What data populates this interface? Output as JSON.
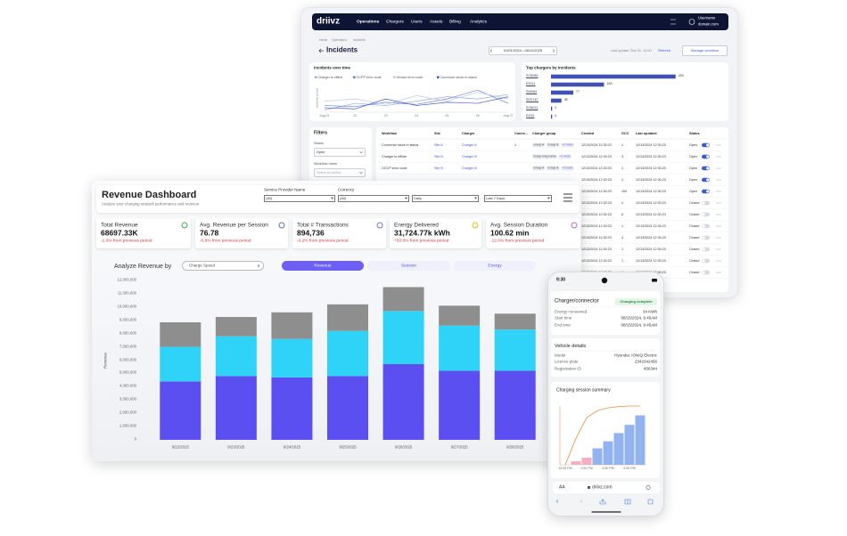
{
  "incidents_app": {
    "nav": {
      "logo": "driivz",
      "items": [
        "Operations",
        "Chargers",
        "Users",
        "Assets",
        "Billing",
        "Analytics"
      ],
      "user_name": "Username",
      "user_domain": "domain.com"
    },
    "breadcrumb": [
      "Home",
      "Operations",
      "Incidents"
    ],
    "title": "Incidents",
    "date_range": "01/01/2024 - 08/11/2025",
    "last_update": "Last update: Sep 01, 12:00",
    "refresh": "Refresh",
    "manage_workflow": "Manage workflow",
    "incidents_chart": {
      "type": "line",
      "title": "Incidents over time",
      "y_label": "Incidents (count)",
      "categories": [
        "Aug 21",
        "22",
        "23",
        "24",
        "25",
        "26",
        "Aug 27"
      ],
      "ylim": [
        0,
        25
      ],
      "series": [
        {
          "name": "Charger is offline",
          "color": "#9aa7e8",
          "values": [
            2,
            8,
            6,
            10,
            14,
            12,
            16
          ]
        },
        {
          "name": "OCPP error code",
          "color": "#5f7fe0",
          "values": [
            6,
            5,
            9,
            7,
            12,
            20,
            8
          ]
        },
        {
          "name": "Vendor error code",
          "color": "#b9c8f2",
          "values": [
            10,
            12,
            7,
            15,
            10,
            18,
            12
          ]
        },
        {
          "name": "Connector stuck in status",
          "color": "#3a5bd0",
          "values": [
            4,
            3,
            12,
            6,
            9,
            8,
            14
          ]
        }
      ]
    },
    "top_chargers": {
      "type": "bar",
      "orientation": "horizontal",
      "title": "Top chargers by incidents",
      "categories": [
        "SVN085",
        "RS111",
        "SWK84",
        "SDS74C",
        "SVN013",
        "RG32"
      ],
      "values": [
        430,
        183,
        77,
        36,
        4,
        4
      ],
      "color": "#3f51b5",
      "xlim": [
        0,
        560
      ]
    },
    "filters": {
      "title": "Filters",
      "status_label": "Status",
      "status_value": "Open",
      "workflow_label": "Workflow name",
      "workflow_placeholder": "Select an option",
      "reset": "Reset",
      "apply": "Apply"
    },
    "table": {
      "headers": [
        "Workflow",
        "Site",
        "Charger",
        "Conne...",
        "Charger group",
        "Created",
        "OCC",
        "Last updated",
        "Status"
      ],
      "rows": [
        [
          "Connector stuck in status",
          "Site A",
          "Charger A",
          1,
          [
            "Group A",
            "Group B",
            "+2 more"
          ],
          "12/13/2024 12:30:23",
          1,
          "12/13/2024 12:30:23",
          "Open"
        ],
        [
          "Charger is offline",
          "Site B",
          "Charger B",
          null,
          [
            "Group long name",
            "+1 more"
          ],
          "12/13/2024 12:30:23",
          3,
          "12/13/2024 12:30:23",
          "Open"
        ],
        [
          "OCCP error code",
          "Site B",
          "Charger B",
          null,
          [
            "Group A",
            "Group B",
            "+3 more"
          ],
          "12/13/2024 12:30:23",
          1,
          "12/13/2024 12:30:23",
          "Open"
        ]
      ],
      "partial_rows": [
        [
          "12/13/2024 12:30:23",
          1,
          "12/13/2024 12:30:23",
          "Open"
        ],
        [
          "12/13/2024 12:30:23",
          100,
          "12/13/2024 12:30:23",
          "Open"
        ],
        [
          "12/13/2024 12:30:23",
          1,
          "12/13/2024 12:30:23",
          "Closed"
        ],
        [
          "12/13/2024 12:30:23",
          6,
          "12/13/2024 12:30:23",
          "Closed"
        ],
        [
          "12/13/2024 12:30:23",
          1,
          "12/13/2024 12:30:23",
          "Closed"
        ],
        [
          "12/13/2024 12:30:23",
          4,
          "12/13/2024 12:30:23",
          "Closed"
        ],
        [
          "12/13/2024 12:30:23",
          1,
          "12/13/2024 12:30:23",
          "Closed"
        ],
        [
          "12/13/2024 12:30:23",
          1,
          "12/13/2024 12:30:23",
          "Closed"
        ],
        [
          "12/13/2024 12:30:23",
          1,
          "12/13/2024 12:30:23",
          "Closed"
        ]
      ]
    }
  },
  "revenue_dashboard": {
    "title": "Revenue Dashboard",
    "subtitle": "Analyze your charging network performance and revenue",
    "filters": [
      {
        "label": "Service Provider Name",
        "value": "(All)"
      },
      {
        "label": "Currency",
        "value": "(All)"
      },
      {
        "value": "Daily"
      },
      {
        "value": "Last 7 Days"
      }
    ],
    "kpis": [
      {
        "label": "Total Revenue",
        "value": "68697.33K",
        "change": "-1.0% from previous period"
      },
      {
        "label": "Avg. Revenue per Session",
        "value": "76.78",
        "change": "-0.8% from previous period"
      },
      {
        "label": "Total # Transactions",
        "value": "894,736",
        "change": "-0.2% from previous period"
      },
      {
        "label": "Energy Delivered",
        "value": "31,724.77k kWh",
        "change": "+50.8% from previous period"
      },
      {
        "label": "Avg. Session Duration",
        "value": "100.62 min",
        "change": "-12.0% from previous period"
      }
    ],
    "chart_title": "Analyze Revenue by",
    "dimension": "Charge Speed",
    "tabs": [
      "Revenue",
      "Session",
      "Energy"
    ],
    "chart": {
      "type": "bar",
      "stacked": true,
      "y_label": "Revenue",
      "categories": [
        "9/22/2025",
        "9/23/2025",
        "9/24/2025",
        "9/25/2025",
        "9/26/2025",
        "9/27/2025",
        "9/28/2025"
      ],
      "ylim": [
        0,
        12000000
      ],
      "yticks": [
        0,
        {
          "value": 1000000,
          "label": "1,000,000"
        },
        {
          "value": 2000000,
          "label": "2,000,000"
        },
        {
          "value": 3000000,
          "label": "3,000,000"
        },
        {
          "value": 4000000,
          "label": "4,000,000"
        },
        {
          "value": 5000000,
          "label": "5,000,000"
        },
        {
          "value": 6000000,
          "label": "6,000,000"
        },
        {
          "value": 7000000,
          "label": "7,000,000"
        },
        {
          "value": 8000000,
          "label": "8,000,000"
        },
        {
          "value": 9000000,
          "label": "9,000,000"
        },
        {
          "value": 10000000,
          "label": "10,000,000"
        },
        {
          "value": 11000000,
          "label": "11,000,000"
        },
        {
          "value": 12000000,
          "label": "12,000,000"
        }
      ],
      "grid": false,
      "series": [
        {
          "color": "#5b4ff2",
          "values": [
            4400000,
            4800000,
            4700000,
            4800000,
            5700000,
            5200000,
            5200000
          ]
        },
        {
          "color": "#2fd3f7",
          "values": [
            2600000,
            3000000,
            2900000,
            3400000,
            4000000,
            3400000,
            3100000
          ]
        },
        {
          "color": "#8e8e8e",
          "values": [
            1850000,
            1450000,
            2000000,
            2000000,
            1800000,
            1500000,
            1200000
          ]
        }
      ]
    }
  },
  "phone": {
    "time": "9:30",
    "charger_card": {
      "title": "Charger/connector",
      "badge": "Charging complete",
      "rows": [
        [
          "Energy consumed",
          "34 KWh"
        ],
        [
          "Start time",
          "08/15/2024, 6:45AM"
        ],
        [
          "End time",
          "08/15/2024, 9:45AM"
        ]
      ]
    },
    "vehicle_card": {
      "title": "Vehicle details",
      "rows": [
        [
          "Model",
          "Hyundai, IONIQ Electric"
        ],
        [
          "Licence plate",
          "2342342456"
        ],
        [
          "Registration ID",
          "456344"
        ]
      ]
    },
    "summary": {
      "type": "bar",
      "title": "Charging session summary",
      "categories": [
        "12:00 PM",
        null,
        "1:00 PM",
        null,
        "2:00 PM",
        null,
        "3:00 PM",
        null
      ],
      "ylim": [
        0,
        50
      ],
      "y2lim": [
        0,
        100
      ],
      "series": [
        {
          "color": "#f2a0b4",
          "values": [
            null,
            3,
            6,
            null,
            null,
            null,
            null,
            null
          ]
        },
        {
          "color": "#7fa6ec",
          "values": [
            null,
            null,
            null,
            14,
            20,
            27,
            34,
            42
          ]
        },
        {
          "color": "#f08c3a",
          "axis": "y2",
          "type": "line",
          "values": [
            0,
            45,
            80,
            92,
            97,
            99,
            100,
            100
          ]
        }
      ]
    },
    "text_size": "AA",
    "url": "driivz.com"
  }
}
